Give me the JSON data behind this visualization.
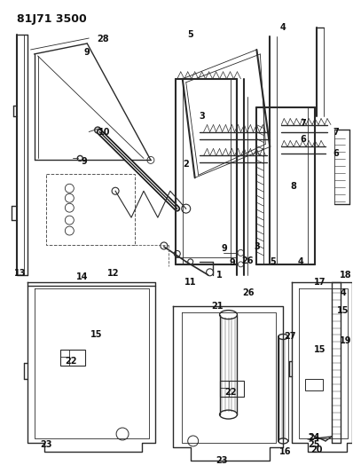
{
  "title": "81J71 3500",
  "bg_color": "#ffffff",
  "line_color": "#2a2a2a",
  "text_color": "#111111",
  "title_fontsize": 9,
  "label_fontsize": 7,
  "fig_width": 3.98,
  "fig_height": 5.33,
  "dpi": 100
}
